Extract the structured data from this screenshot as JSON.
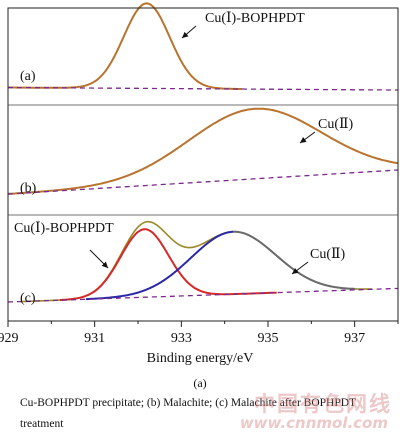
{
  "chart_data": {
    "type": "line",
    "xlabel": "Binding energy/eV",
    "xlim": [
      929,
      938
    ],
    "x_ticks": [
      929,
      931,
      933,
      935,
      937
    ],
    "panels": [
      {
        "id": "a",
        "label": "(a)",
        "annotations": [
          {
            "text": "Cu(Ⅰ)-BOPHPDT"
          }
        ],
        "series": [
          {
            "name": "fit",
            "kind": "peak",
            "center": 932.2,
            "fwhm": 1.25,
            "height": 1.0,
            "baseline": [
              0.1,
              0.07
            ],
            "color": "#b8742f"
          },
          {
            "name": "baseline",
            "kind": "baseline",
            "values": [
              0.1,
              0.07
            ],
            "color": "#7b2a8c",
            "dash": true
          }
        ]
      },
      {
        "id": "b",
        "label": "(b)",
        "annotations": [
          {
            "text": "Cu(Ⅱ)"
          }
        ],
        "series": [
          {
            "name": "fit",
            "kind": "peak",
            "center": 934.7,
            "fwhm": 3.6,
            "height": 0.7,
            "baseline": [
              0.06,
              0.3
            ],
            "color": "#b8742f"
          },
          {
            "name": "baseline",
            "kind": "baseline",
            "values": [
              0.06,
              0.3
            ],
            "color": "#7b2a8c",
            "dash": true
          }
        ]
      },
      {
        "id": "c",
        "label": "(c)",
        "annotations": [
          {
            "text": "Cu(Ⅰ)-BOPHPDT"
          },
          {
            "text": "Cu(Ⅱ)"
          }
        ],
        "series": [
          {
            "name": "envelope",
            "kind": "sum",
            "color": "#9a8a28"
          },
          {
            "name": "Cu(Ⅰ)-BOPHPDT",
            "kind": "peak",
            "center": 932.15,
            "fwhm": 1.3,
            "height": 0.85,
            "color": "#d42a2a"
          },
          {
            "name": "Cu(Ⅱ)",
            "kind": "peak",
            "center": 934.2,
            "fwhm": 2.3,
            "height": 0.78,
            "color": "#2a2aa8"
          },
          {
            "name": "Cu(Ⅱ) satellite",
            "kind": "peak",
            "center": 934.2,
            "fwhm": 2.3,
            "height": 0.78,
            "color": "#6a6a6a"
          },
          {
            "name": "baseline",
            "kind": "baseline",
            "values": [
              0.05,
              0.22
            ],
            "color": "#7b2a8c",
            "dash": true
          }
        ]
      }
    ]
  },
  "sub_label": "(a)",
  "caption": "Cu-BOPHPDT  precipitate;  (b)  Malachite;  (c)  Malachite  after BOPHPDT treatment",
  "watermark": {
    "cn": "中国有色网线",
    "url": "www.cnnmol.com"
  }
}
